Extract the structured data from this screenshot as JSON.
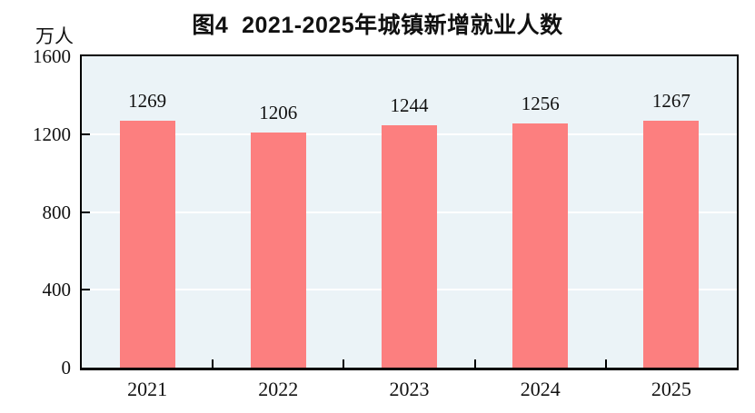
{
  "chart_data": {
    "type": "bar",
    "title": "图4  2021-2025年城镇新增就业人数",
    "unit_label": "万人",
    "categories": [
      "2021",
      "2022",
      "2023",
      "2024",
      "2025"
    ],
    "values": [
      1269,
      1206,
      1244,
      1256,
      1267
    ],
    "value_labels": [
      "1269",
      "1206",
      "1244",
      "1256",
      "1267"
    ],
    "xlabel": "",
    "ylabel": "万人",
    "ylim": [
      0,
      1600
    ],
    "yticks": [
      0,
      400,
      800,
      1200,
      1600
    ],
    "ytick_labels": [
      "0",
      "400",
      "800",
      "1200",
      "1600"
    ],
    "grid": "horizontal",
    "legend_position": "none",
    "colors": {
      "bar": "#FC7F7F",
      "plot_background": "#EBF3F7",
      "gridline": "#FFFFFF",
      "axis": "#000000",
      "text": "#111111"
    }
  }
}
